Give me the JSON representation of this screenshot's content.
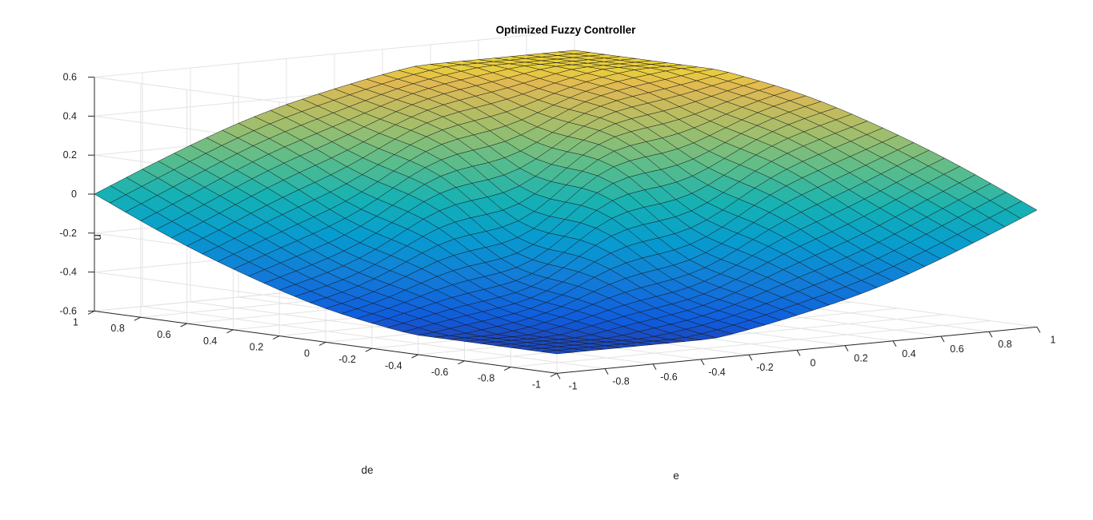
{
  "chart_data": {
    "type": "surface",
    "title": "Optimized Fuzzy Controller",
    "xlabel": "e",
    "ylabel": "de",
    "zlabel": "u",
    "xlim": [
      -1,
      1
    ],
    "ylim": [
      -1,
      1
    ],
    "zlim": [
      -0.6,
      0.6
    ],
    "x_ticks": [
      "-1",
      "-0.8",
      "-0.6",
      "-0.4",
      "-0.2",
      "0",
      "0.2",
      "0.4",
      "0.6",
      "0.8",
      "1"
    ],
    "y_ticks": [
      "-1",
      "-0.8",
      "-0.6",
      "-0.4",
      "-0.2",
      "0",
      "0.2",
      "0.4",
      "0.6",
      "0.8",
      "1"
    ],
    "z_ticks": [
      "-0.6",
      "-0.4",
      "-0.2",
      "0",
      "0.2",
      "0.4",
      "0.6"
    ],
    "grid": true,
    "colormap": "parula",
    "surface_summary": {
      "saturation_high": 0.5,
      "saturation_low": -0.5,
      "description_points": [
        {
          "e": 1,
          "de": 1,
          "u": 0.5
        },
        {
          "e": -1,
          "de": -1,
          "u": -0.5
        },
        {
          "e": 0,
          "de": 0,
          "u": 0
        },
        {
          "e": 1,
          "de": -1,
          "u": 0
        },
        {
          "e": -1,
          "de": 1,
          "u": 0
        }
      ]
    }
  }
}
